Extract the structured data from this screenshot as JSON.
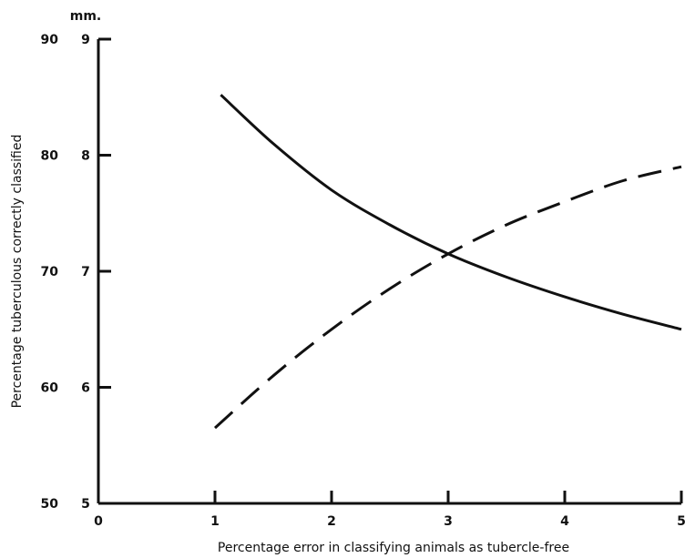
{
  "chart_data": {
    "type": "line",
    "title": "",
    "xlabel": "Percentage error in classifying animals as tubercle-free",
    "ylabel": "Percentage tuberculous correctly classified",
    "secondary_y_unit": "mm.",
    "xlim": [
      0,
      5
    ],
    "ylim": [
      50,
      90
    ],
    "secondary_ylim": [
      5,
      9
    ],
    "x_ticks": [
      "0",
      "1",
      "2",
      "3",
      "4",
      "5"
    ],
    "y_ticks": [
      "50",
      "60",
      "70",
      "80",
      "90"
    ],
    "secondary_y_ticks": [
      "5",
      "6",
      "7",
      "8",
      "9"
    ],
    "grid": false,
    "series": [
      {
        "style": "solid",
        "axis": "left",
        "x": [
          1.05,
          1.5,
          2.0,
          2.5,
          3.0,
          3.5,
          4.0,
          4.5,
          5.0
        ],
        "y": [
          85.2,
          81.0,
          77.0,
          74.0,
          71.5,
          69.5,
          67.8,
          66.3,
          65.0
        ]
      },
      {
        "style": "dashed",
        "axis": "right",
        "x": [
          1.0,
          1.5,
          2.0,
          2.5,
          3.0,
          3.5,
          4.0,
          4.5,
          5.0
        ],
        "y": [
          5.65,
          6.1,
          6.5,
          6.85,
          7.15,
          7.4,
          7.6,
          7.78,
          7.9
        ]
      }
    ]
  }
}
